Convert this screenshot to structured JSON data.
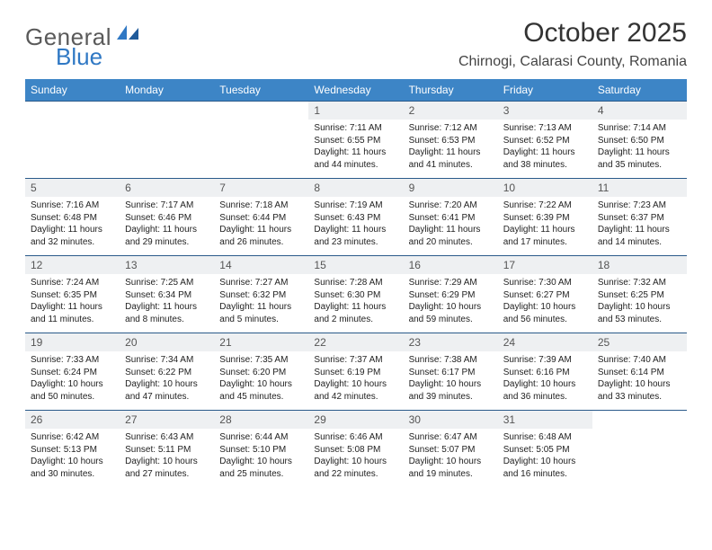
{
  "header": {
    "logo_text1": "General",
    "logo_text2": "Blue",
    "month_title": "October 2025",
    "location": "Chirnogi, Calarasi County, Romania"
  },
  "styling": {
    "header_bg": "#3d85c6",
    "header_fg": "#ffffff",
    "daynum_bg": "#eef0f2",
    "daynum_fg": "#555555",
    "row_border": "#2a5a8a",
    "body_text": "#222222",
    "logo_gray": "#5a5a5a",
    "logo_blue": "#2f78c4",
    "title_color": "#333333",
    "background": "#ffffff",
    "header_fontsize": 12,
    "daynum_fontsize": 12,
    "cell_fontsize": 10,
    "title_fontsize": 30,
    "location_fontsize": 16
  },
  "calendar": {
    "day_headers": [
      "Sunday",
      "Monday",
      "Tuesday",
      "Wednesday",
      "Thursday",
      "Friday",
      "Saturday"
    ],
    "weeks": [
      [
        null,
        null,
        null,
        {
          "n": "1",
          "sr": "7:11 AM",
          "ss": "6:55 PM",
          "dl": "11 hours and 44 minutes."
        },
        {
          "n": "2",
          "sr": "7:12 AM",
          "ss": "6:53 PM",
          "dl": "11 hours and 41 minutes."
        },
        {
          "n": "3",
          "sr": "7:13 AM",
          "ss": "6:52 PM",
          "dl": "11 hours and 38 minutes."
        },
        {
          "n": "4",
          "sr": "7:14 AM",
          "ss": "6:50 PM",
          "dl": "11 hours and 35 minutes."
        }
      ],
      [
        {
          "n": "5",
          "sr": "7:16 AM",
          "ss": "6:48 PM",
          "dl": "11 hours and 32 minutes."
        },
        {
          "n": "6",
          "sr": "7:17 AM",
          "ss": "6:46 PM",
          "dl": "11 hours and 29 minutes."
        },
        {
          "n": "7",
          "sr": "7:18 AM",
          "ss": "6:44 PM",
          "dl": "11 hours and 26 minutes."
        },
        {
          "n": "8",
          "sr": "7:19 AM",
          "ss": "6:43 PM",
          "dl": "11 hours and 23 minutes."
        },
        {
          "n": "9",
          "sr": "7:20 AM",
          "ss": "6:41 PM",
          "dl": "11 hours and 20 minutes."
        },
        {
          "n": "10",
          "sr": "7:22 AM",
          "ss": "6:39 PM",
          "dl": "11 hours and 17 minutes."
        },
        {
          "n": "11",
          "sr": "7:23 AM",
          "ss": "6:37 PM",
          "dl": "11 hours and 14 minutes."
        }
      ],
      [
        {
          "n": "12",
          "sr": "7:24 AM",
          "ss": "6:35 PM",
          "dl": "11 hours and 11 minutes."
        },
        {
          "n": "13",
          "sr": "7:25 AM",
          "ss": "6:34 PM",
          "dl": "11 hours and 8 minutes."
        },
        {
          "n": "14",
          "sr": "7:27 AM",
          "ss": "6:32 PM",
          "dl": "11 hours and 5 minutes."
        },
        {
          "n": "15",
          "sr": "7:28 AM",
          "ss": "6:30 PM",
          "dl": "11 hours and 2 minutes."
        },
        {
          "n": "16",
          "sr": "7:29 AM",
          "ss": "6:29 PM",
          "dl": "10 hours and 59 minutes."
        },
        {
          "n": "17",
          "sr": "7:30 AM",
          "ss": "6:27 PM",
          "dl": "10 hours and 56 minutes."
        },
        {
          "n": "18",
          "sr": "7:32 AM",
          "ss": "6:25 PM",
          "dl": "10 hours and 53 minutes."
        }
      ],
      [
        {
          "n": "19",
          "sr": "7:33 AM",
          "ss": "6:24 PM",
          "dl": "10 hours and 50 minutes."
        },
        {
          "n": "20",
          "sr": "7:34 AM",
          "ss": "6:22 PM",
          "dl": "10 hours and 47 minutes."
        },
        {
          "n": "21",
          "sr": "7:35 AM",
          "ss": "6:20 PM",
          "dl": "10 hours and 45 minutes."
        },
        {
          "n": "22",
          "sr": "7:37 AM",
          "ss": "6:19 PM",
          "dl": "10 hours and 42 minutes."
        },
        {
          "n": "23",
          "sr": "7:38 AM",
          "ss": "6:17 PM",
          "dl": "10 hours and 39 minutes."
        },
        {
          "n": "24",
          "sr": "7:39 AM",
          "ss": "6:16 PM",
          "dl": "10 hours and 36 minutes."
        },
        {
          "n": "25",
          "sr": "7:40 AM",
          "ss": "6:14 PM",
          "dl": "10 hours and 33 minutes."
        }
      ],
      [
        {
          "n": "26",
          "sr": "6:42 AM",
          "ss": "5:13 PM",
          "dl": "10 hours and 30 minutes."
        },
        {
          "n": "27",
          "sr": "6:43 AM",
          "ss": "5:11 PM",
          "dl": "10 hours and 27 minutes."
        },
        {
          "n": "28",
          "sr": "6:44 AM",
          "ss": "5:10 PM",
          "dl": "10 hours and 25 minutes."
        },
        {
          "n": "29",
          "sr": "6:46 AM",
          "ss": "5:08 PM",
          "dl": "10 hours and 22 minutes."
        },
        {
          "n": "30",
          "sr": "6:47 AM",
          "ss": "5:07 PM",
          "dl": "10 hours and 19 minutes."
        },
        {
          "n": "31",
          "sr": "6:48 AM",
          "ss": "5:05 PM",
          "dl": "10 hours and 16 minutes."
        },
        null
      ]
    ]
  },
  "labels": {
    "sunrise_prefix": "Sunrise: ",
    "sunset_prefix": "Sunset: ",
    "daylight_prefix": "Daylight: "
  }
}
